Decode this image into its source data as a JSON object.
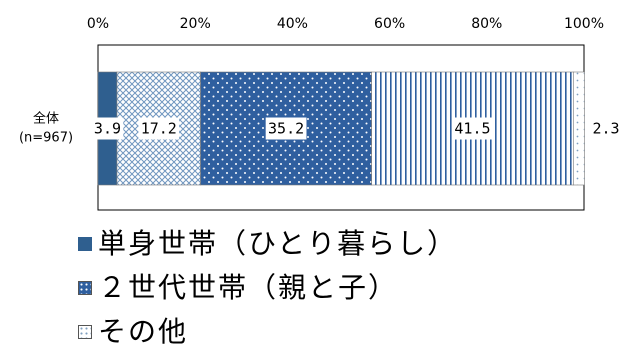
{
  "chart_data": {
    "type": "bar",
    "orientation": "horizontal",
    "stacked": true,
    "categories": [
      "全体\n(n=967)"
    ],
    "x_ticks": [
      "0%",
      "20%",
      "40%",
      "60%",
      "80%",
      "100%"
    ],
    "xlim": [
      0,
      100
    ],
    "series": [
      {
        "name": "単身世帯（ひとり暮らし）",
        "values": [
          3.9
        ],
        "label": "3.9",
        "color": "#2f5f8f",
        "pattern": "solid"
      },
      {
        "name": "",
        "values": [
          17.2
        ],
        "label": "17.2",
        "color": "#9bbbd8",
        "pattern": "crosshatch"
      },
      {
        "name": "２世代世帯（親と子）",
        "values": [
          35.2
        ],
        "label": "35.2",
        "color": "#2f5f9f",
        "pattern": "dots"
      },
      {
        "name": "",
        "values": [
          41.5
        ],
        "label": "41.5",
        "color": "#2f5f9f",
        "pattern": "vertical-lines"
      },
      {
        "name": "その他",
        "values": [
          2.3
        ],
        "label": "2.3",
        "color": "#9bbbd8",
        "pattern": "light-dots"
      }
    ],
    "row_label_lines": [
      "全体",
      "(n=967)"
    ],
    "legend_placement": "bottom"
  },
  "legend": [
    {
      "text": "単身世帯（ひとり暮らし）",
      "pattern": "solid"
    },
    {
      "text": "２世代世帯（親と子）",
      "pattern": "dots"
    },
    {
      "text": "その他",
      "pattern": "light-dots"
    }
  ]
}
